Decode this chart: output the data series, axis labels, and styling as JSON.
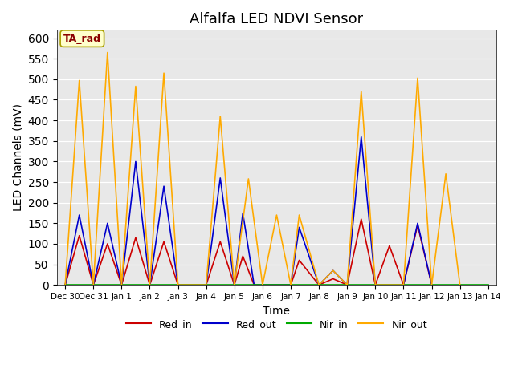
{
  "title": "Alfalfa LED NDVI Sensor",
  "xlabel": "Time",
  "ylabel": "LED Channels (mV)",
  "ylim": [
    0,
    620
  ],
  "yticks": [
    0,
    50,
    100,
    150,
    200,
    250,
    300,
    350,
    400,
    450,
    500,
    550,
    600
  ],
  "background_color": "#e8e8e8",
  "annotation_text": "TA_rad",
  "annotation_color": "#8B0000",
  "annotation_bg": "#ffffcc",
  "x_labels": [
    "Dec 30",
    "Dec 31",
    "Jan 1",
    "Jan 2",
    "Jan 3",
    "Jan 4",
    "Jan 5",
    "Jan 6",
    "Jan 7",
    "Jan 8",
    "Jan 9",
    "Jan 10",
    "Jan 11",
    "Jan 12",
    "Jan 13",
    "Jan 14"
  ],
  "x_positions": [
    0,
    1,
    2,
    3,
    4,
    5,
    6,
    7,
    8,
    9,
    10,
    11,
    12,
    13,
    14,
    15
  ],
  "series": {
    "Red_in": {
      "color": "#cc0000",
      "x": [
        0,
        0.5,
        1,
        1.5,
        2,
        2.5,
        3,
        3.5,
        4,
        5,
        5.5,
        6,
        6.3,
        6.7,
        7,
        8,
        8.3,
        9,
        9.5,
        10,
        10.5,
        11,
        11.5,
        12,
        12.5,
        13
      ],
      "y": [
        0,
        120,
        0,
        100,
        0,
        115,
        0,
        105,
        0,
        0,
        105,
        0,
        70,
        0,
        0,
        0,
        60,
        0,
        15,
        0,
        160,
        0,
        95,
        0,
        145,
        0
      ]
    },
    "Red_out": {
      "color": "#0000cc",
      "x": [
        0,
        0.5,
        1,
        1.5,
        2,
        2.5,
        3,
        3.5,
        4,
        5,
        5.5,
        6,
        6.3,
        6.7,
        7,
        8,
        8.3,
        9,
        9.5,
        10,
        10.5,
        11,
        12,
        12.5,
        13
      ],
      "y": [
        0,
        170,
        0,
        150,
        0,
        300,
        0,
        240,
        0,
        0,
        260,
        0,
        175,
        0,
        0,
        0,
        140,
        0,
        35,
        0,
        360,
        0,
        0,
        150,
        0
      ]
    },
    "Nir_in": {
      "color": "#00aa00",
      "x": [
        0,
        1,
        2,
        3,
        4,
        5,
        6,
        7,
        8,
        9,
        10,
        11,
        12,
        13,
        14,
        15
      ],
      "y": [
        0,
        0,
        0,
        0,
        0,
        0,
        0,
        0,
        0,
        0,
        0,
        0,
        0,
        0,
        0,
        0
      ]
    },
    "Nir_out": {
      "color": "#ffaa00",
      "x": [
        0,
        0.5,
        1,
        1.5,
        2,
        2.5,
        3,
        3.5,
        4,
        5,
        5.5,
        6,
        6.5,
        7,
        7.5,
        8,
        8.3,
        9,
        9.5,
        10,
        10.5,
        11,
        12,
        12.5,
        13,
        13.5,
        14
      ],
      "y": [
        0,
        497,
        0,
        565,
        0,
        483,
        0,
        515,
        0,
        0,
        410,
        0,
        258,
        0,
        170,
        0,
        170,
        0,
        35,
        0,
        470,
        0,
        0,
        503,
        0,
        270,
        0
      ]
    }
  }
}
